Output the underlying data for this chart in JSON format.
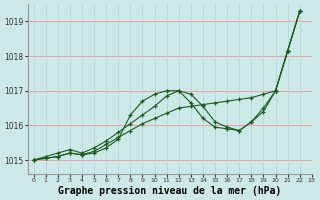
{
  "background_color": "#cce8e8",
  "grid_color_h": "#f0a0a0",
  "grid_color_v": "#b8d8d8",
  "line_color": "#1a5c1a",
  "xlabel": "Graphe pression niveau de la mer (hPa)",
  "xlabel_fontsize": 7,
  "xlim": [
    -0.5,
    23
  ],
  "ylim": [
    1014.6,
    1019.5
  ],
  "yticks": [
    1015,
    1016,
    1017,
    1018,
    1019
  ],
  "xticks": [
    0,
    1,
    2,
    3,
    4,
    5,
    6,
    7,
    8,
    9,
    10,
    11,
    12,
    13,
    14,
    15,
    16,
    17,
    18,
    19,
    20,
    21,
    22,
    23
  ],
  "series": [
    [
      1015.0,
      1015.05,
      1015.1,
      1015.2,
      1015.15,
      1015.2,
      1015.35,
      1015.6,
      1016.3,
      1016.7,
      1016.9,
      1017.0,
      1017.0,
      1016.65,
      1016.2,
      1015.95,
      1015.9,
      1015.85,
      1016.1,
      1016.5,
      1017.0,
      1018.15,
      1019.3
    ],
    [
      1015.0,
      1015.05,
      1015.1,
      1015.2,
      1015.15,
      1015.25,
      1015.45,
      1015.65,
      1015.85,
      1016.05,
      1016.2,
      1016.35,
      1016.5,
      1016.55,
      1016.6,
      1016.65,
      1016.7,
      1016.75,
      1016.8,
      1016.9,
      1017.0,
      1018.15,
      1019.3
    ],
    [
      1015.0,
      1015.1,
      1015.2,
      1015.3,
      1015.2,
      1015.35,
      1015.55,
      1015.8,
      1016.05,
      1016.3,
      1016.55,
      1016.85,
      1017.0,
      1016.9,
      1016.55,
      1016.1,
      1015.95,
      1015.85,
      1016.1,
      1016.4,
      1017.0,
      1018.15,
      1019.3
    ]
  ],
  "x_values": [
    0,
    1,
    2,
    3,
    4,
    5,
    6,
    7,
    8,
    9,
    10,
    11,
    12,
    13,
    14,
    15,
    16,
    17,
    18,
    19,
    20,
    21,
    22
  ]
}
